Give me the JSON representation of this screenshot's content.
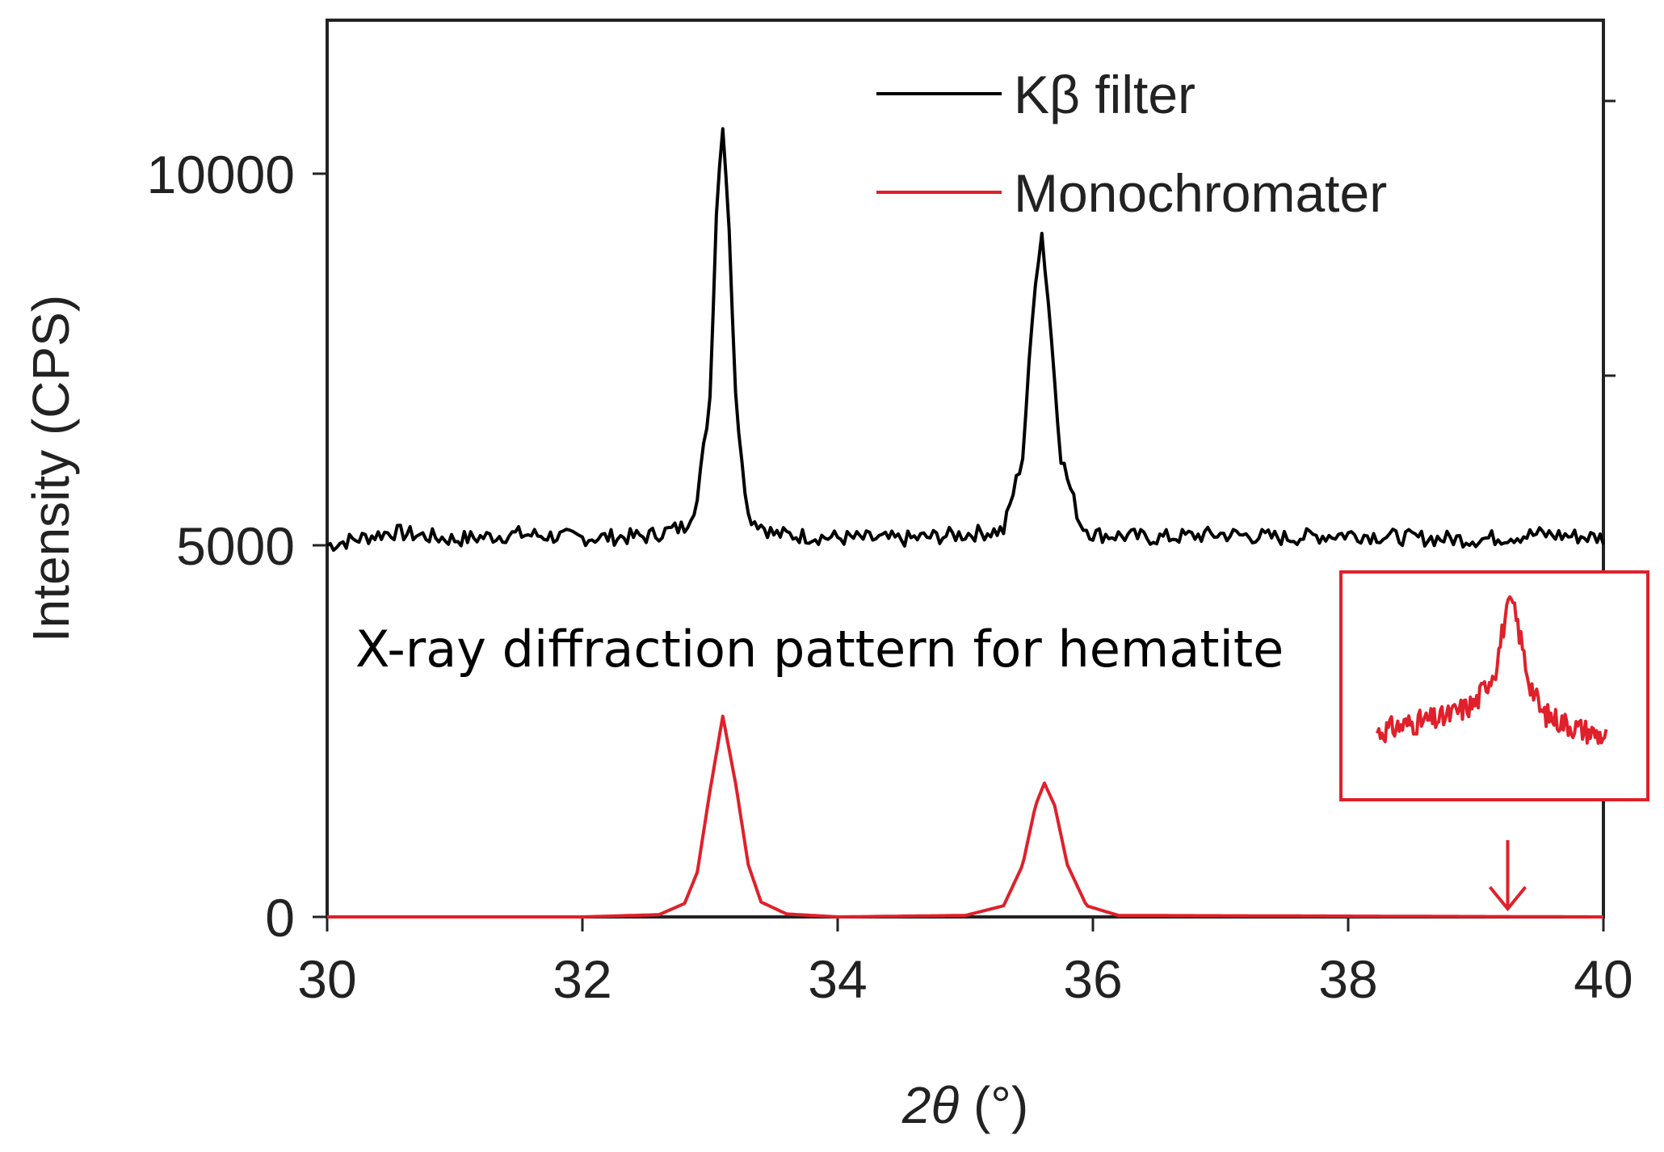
{
  "chart_data": {
    "type": "line",
    "annotation": "X-ray diffraction pattern for hematite",
    "xlabel_parts": {
      "variable": "2θ",
      "unit": " (°)"
    },
    "ylabel": "Intensity (CPS)",
    "xlim": [
      30,
      40
    ],
    "ylim": [
      0,
      11000
    ],
    "x_ticks": [
      30,
      32,
      34,
      36,
      38,
      40
    ],
    "x_tick_labels": [
      "30",
      "32",
      "34",
      "36",
      "38",
      "40"
    ],
    "y_ticks": [
      0,
      5000,
      10000
    ],
    "y_tick_labels": [
      "0",
      "5000",
      "10000"
    ],
    "grid": false,
    "legend_position": "top-right",
    "colors": {
      "kbeta": "#000000",
      "mono": "#e0202a",
      "inset_border": "#e0202a"
    },
    "series": [
      {
        "name": "Kβ filter",
        "color": "#000000",
        "x": [
          30.0,
          30.5,
          31.0,
          31.5,
          32.0,
          32.5,
          32.8,
          32.9,
          33.0,
          33.05,
          33.1,
          33.15,
          33.2,
          33.3,
          33.5,
          34.0,
          34.5,
          35.0,
          35.3,
          35.45,
          35.55,
          35.6,
          35.65,
          35.75,
          35.9,
          36.0,
          36.5,
          37.0,
          37.5,
          38.0,
          38.5,
          39.0,
          39.5,
          40.0
        ],
        "values": [
          5000,
          5180,
          5080,
          5150,
          5100,
          5120,
          5250,
          5600,
          7000,
          9500,
          10700,
          9300,
          7000,
          5400,
          5150,
          5100,
          5080,
          5150,
          5200,
          6200,
          8600,
          9200,
          8300,
          6200,
          5300,
          5150,
          5100,
          5150,
          5100,
          5150,
          5100,
          5080,
          5150,
          5100
        ]
      },
      {
        "name": "Monochromater",
        "color": "#e0202a",
        "x": [
          30.0,
          32.0,
          32.6,
          32.8,
          32.9,
          33.0,
          33.1,
          33.2,
          33.3,
          33.4,
          33.6,
          34.0,
          35.0,
          35.3,
          35.45,
          35.55,
          35.62,
          35.7,
          35.8,
          35.95,
          36.2,
          40.0
        ],
        "values": [
          0,
          0,
          30,
          180,
          600,
          1700,
          2700,
          1800,
          700,
          200,
          40,
          0,
          20,
          150,
          700,
          1500,
          1800,
          1500,
          700,
          150,
          20,
          0
        ]
      }
    ],
    "inset": {
      "description_marker": "arrow",
      "arrow_x": 39.25,
      "x": [
        38.25,
        38.5,
        38.75,
        39.0,
        39.15,
        39.22,
        39.27,
        39.32,
        39.4,
        39.5,
        39.75,
        40.0
      ],
      "values": [
        0.25,
        0.3,
        0.33,
        0.42,
        0.62,
        0.9,
        1.0,
        0.86,
        0.56,
        0.36,
        0.28,
        0.22
      ]
    }
  }
}
